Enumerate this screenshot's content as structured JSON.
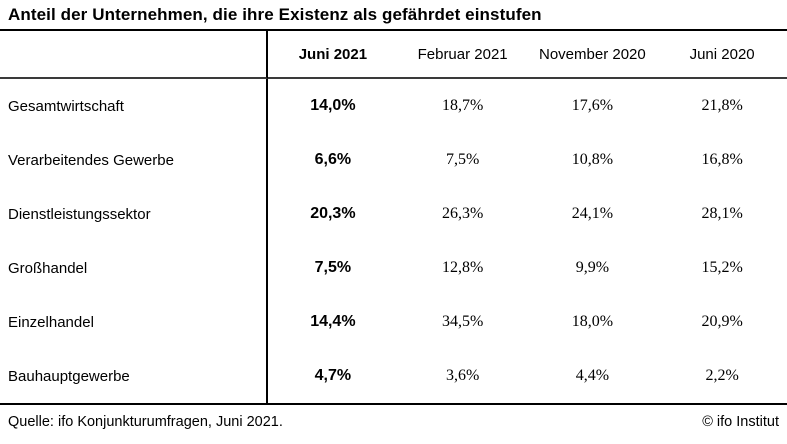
{
  "title": "Anteil der Unternehmen, die ihre Existenz als gefährdet einstufen",
  "table": {
    "columns": [
      "Juni 2021",
      "Februar 2021",
      "November 2020",
      "Juni 2020"
    ],
    "rows": [
      {
        "label": "Gesamtwirtschaft",
        "values": [
          "14,0%",
          "18,7%",
          "17,6%",
          "21,8%"
        ]
      },
      {
        "label": "Verarbeitendes Gewerbe",
        "values": [
          "6,6%",
          "7,5%",
          "10,8%",
          "16,8%"
        ]
      },
      {
        "label": "Dienstleistungssektor",
        "values": [
          "20,3%",
          "26,3%",
          "24,1%",
          "28,1%"
        ]
      },
      {
        "label": "Großhandel",
        "values": [
          "7,5%",
          "12,8%",
          "9,9%",
          "15,2%"
        ]
      },
      {
        "label": "Einzelhandel",
        "values": [
          "14,4%",
          "34,5%",
          "18,0%",
          "20,9%"
        ]
      },
      {
        "label": "Bauhauptgewerbe",
        "values": [
          "4,7%",
          "3,6%",
          "4,4%",
          "2,2%"
        ]
      }
    ]
  },
  "footer": {
    "source": "Quelle: ifo Konjunkturumfragen, Juni 2021.",
    "copyright": "© ifo Institut"
  },
  "colors": {
    "background": "#ffffff",
    "text": "#000000",
    "rule_black": "#000000",
    "rule_gray": "#3a3a3a"
  },
  "chart_data": {
    "type": "table",
    "title": "Anteil der Unternehmen, die ihre Existenz als gefährdet einstufen",
    "unit": "%",
    "categories": [
      "Gesamtwirtschaft",
      "Verarbeitendes Gewerbe",
      "Dienstleistungssektor",
      "Großhandel",
      "Einzelhandel",
      "Bauhauptgewerbe"
    ],
    "series": [
      {
        "name": "Juni 2021",
        "values": [
          14.0,
          6.6,
          20.3,
          7.5,
          14.4,
          4.7
        ]
      },
      {
        "name": "Februar 2021",
        "values": [
          18.7,
          7.5,
          26.3,
          12.8,
          34.5,
          3.6
        ]
      },
      {
        "name": "November 2020",
        "values": [
          17.6,
          10.8,
          24.1,
          9.9,
          18.0,
          4.4
        ]
      },
      {
        "name": "Juni 2020",
        "values": [
          21.8,
          16.8,
          28.1,
          15.2,
          20.9,
          2.2
        ]
      }
    ],
    "source": "Quelle: ifo Konjunkturumfragen, Juni 2021.",
    "attribution": "© ifo Institut"
  }
}
